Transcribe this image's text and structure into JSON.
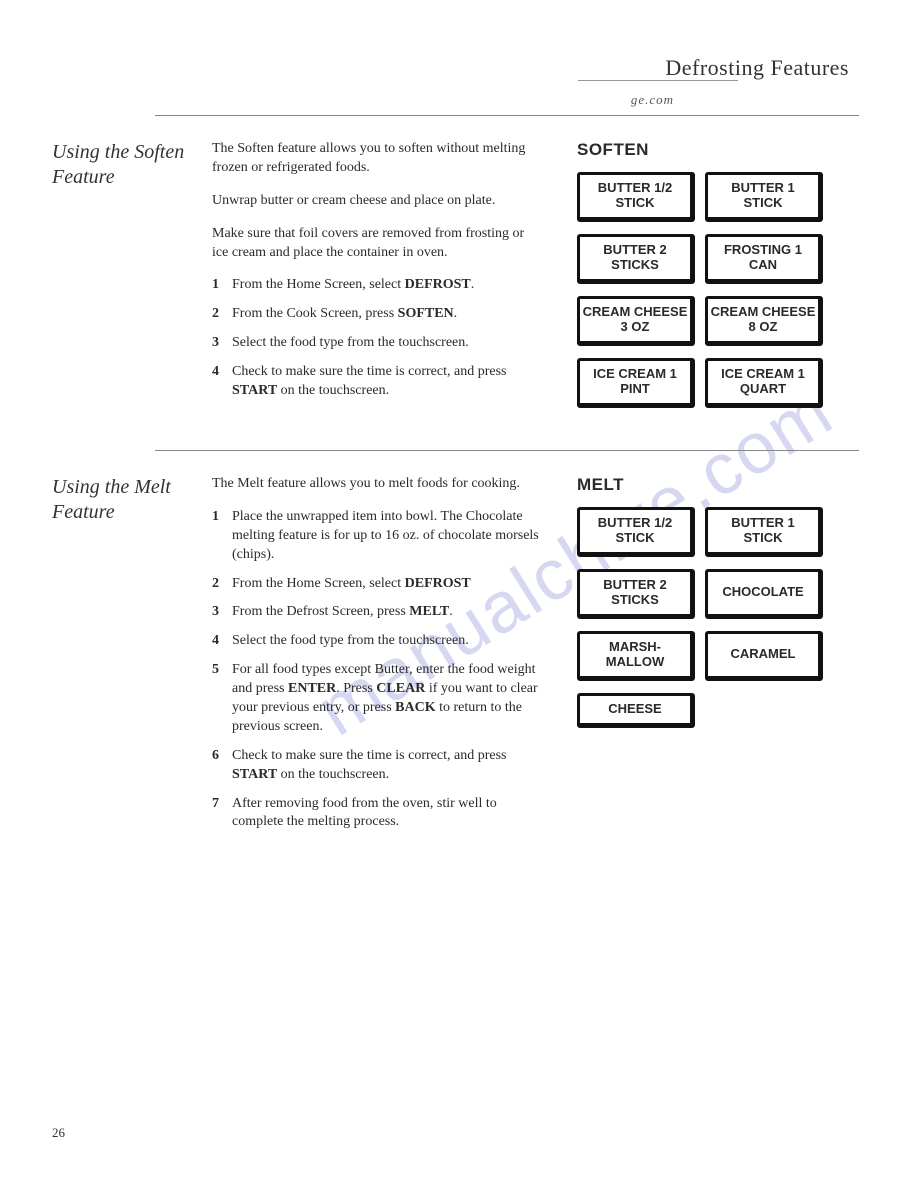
{
  "header": {
    "title": "Defrosting Features",
    "website": "ge.com"
  },
  "watermark": "manualchive.com",
  "page_number": "26",
  "sections": [
    {
      "heading": "Using the Soften Feature",
      "paragraphs": [
        "The Soften feature allows you to soften without melting frozen or refrigerated foods.",
        "Unwrap butter or cream cheese and place on plate.",
        "Make sure that foil covers are removed from frosting or ice cream and place the container in oven."
      ],
      "steps": [
        {
          "n": "1",
          "pre": "From the Home Screen, select ",
          "b": "DEFROST",
          "post": "."
        },
        {
          "n": "2",
          "pre": "From the Cook Screen, press ",
          "b": "SOFTEN",
          "post": "."
        },
        {
          "n": "3",
          "pre": "Select the food type from the touchscreen.",
          "b": "",
          "post": ""
        },
        {
          "n": "4",
          "pre": "Check to make sure the time is correct, and press ",
          "b": "START",
          "post": " on the touchscreen."
        }
      ],
      "panel_title": "SOFTEN",
      "buttons": [
        "BUTTER 1/2 STICK",
        "BUTTER 1 STICK",
        "BUTTER 2 STICKS",
        "FROSTING 1 CAN",
        "CREAM CHEESE 3 OZ",
        "CREAM CHEESE 8 OZ",
        "ICE CREAM 1 PINT",
        "ICE CREAM 1 QUART"
      ]
    },
    {
      "heading": "Using the Melt Feature",
      "paragraphs": [
        "The Melt feature allows you to melt foods for cooking."
      ],
      "steps": [
        {
          "n": "1",
          "pre": "Place the unwrapped item into bowl. The Chocolate melting feature is for up to 16 oz. of chocolate morsels (chips).",
          "b": "",
          "post": ""
        },
        {
          "n": "2",
          "pre": "From the Home Screen, select ",
          "b": "DEFROST",
          "post": ""
        },
        {
          "n": "3",
          "pre": "From the Defrost Screen, press ",
          "b": "MELT",
          "post": "."
        },
        {
          "n": "4",
          "pre": "Select the food type from the touchscreen.",
          "b": "",
          "post": ""
        },
        {
          "n": "5",
          "pre": "For all food types except Butter, enter the food weight and press ",
          "b": "ENTER",
          "post": ". Press ",
          "b2": "CLEAR",
          "post2": " if you want to clear your previous entry, or press ",
          "b3": "BACK",
          "post3": " to return to the previous screen."
        },
        {
          "n": "6",
          "pre": "Check to make sure the time is correct, and press ",
          "b": "START",
          "post": " on the touchscreen."
        },
        {
          "n": "7",
          "pre": "After removing food from the oven, stir well to complete the melting process.",
          "b": "",
          "post": ""
        }
      ],
      "panel_title": "MELT",
      "buttons": [
        "BUTTER 1/2 STICK",
        "BUTTER 1 STICK",
        "BUTTER 2 STICKS",
        "CHOCOLATE",
        "MARSH- MALLOW",
        "CARAMEL",
        "CHEESE"
      ]
    }
  ]
}
